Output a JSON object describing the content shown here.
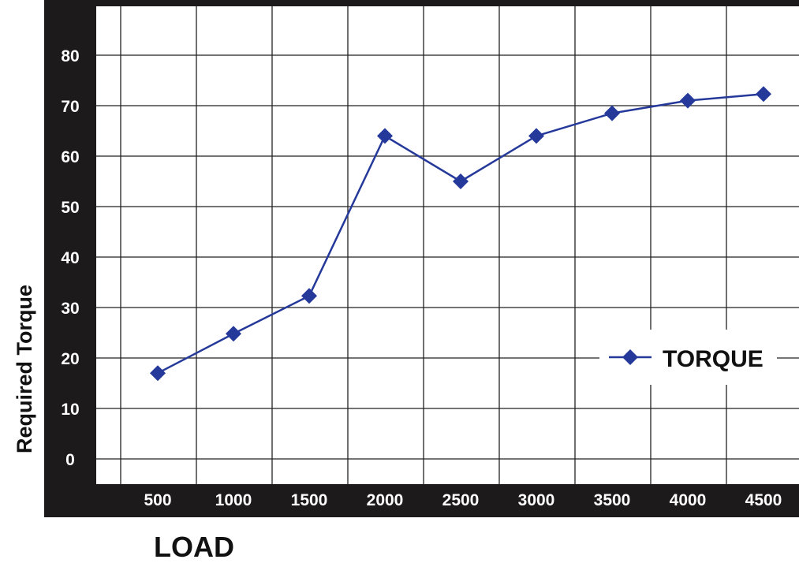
{
  "chart_data": {
    "type": "line",
    "title": "",
    "xlabel": "LOAD",
    "ylabel": "Required Torque",
    "categories": [
      "500",
      "1000",
      "1500",
      "2000",
      "2500",
      "3000",
      "3500",
      "4000",
      "4500"
    ],
    "series": [
      {
        "name": "TORQUE",
        "values": [
          17,
          24.8,
          32.3,
          64,
          55,
          64,
          68.5,
          71,
          72.3
        ],
        "color": "#25399a"
      }
    ],
    "yticks": [
      "0",
      "10",
      "20",
      "30",
      "40",
      "50",
      "60",
      "70",
      "80"
    ],
    "ylim": [
      -5,
      90
    ],
    "grid": true,
    "legend_position": "right"
  }
}
